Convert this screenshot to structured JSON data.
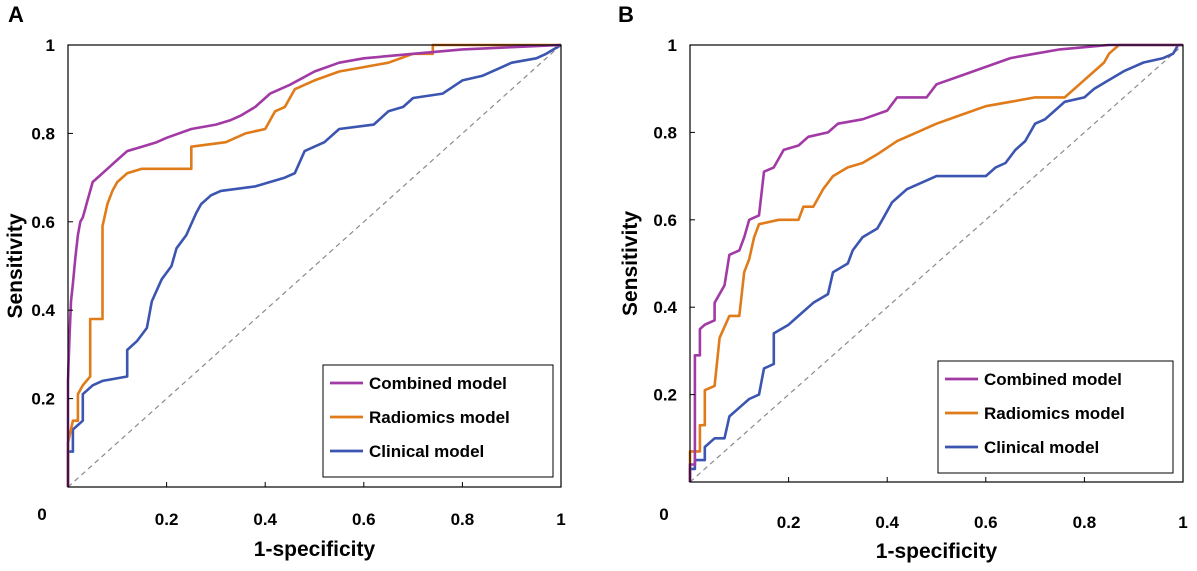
{
  "chart_data": [
    {
      "type": "line",
      "panel": "A",
      "xlabel": "1-specificity",
      "ylabel": "Sensitivity",
      "xlim": [
        0,
        1
      ],
      "ylim": [
        0,
        1
      ],
      "xticks": [
        "0",
        "0.2",
        "0.4",
        "0.6",
        "0.8",
        "1"
      ],
      "yticks": [
        "0.2",
        "0.4",
        "0.6",
        "0.8",
        "1"
      ],
      "legend_position": "bottom-right",
      "reference_line": "diagonal dashed",
      "series": [
        {
          "name": "Combined model",
          "color": "#a23aa6",
          "points": [
            [
              0,
              0
            ],
            [
              0,
              0.24
            ],
            [
              0.003,
              0.34
            ],
            [
              0.006,
              0.42
            ],
            [
              0.01,
              0.46
            ],
            [
              0.015,
              0.52
            ],
            [
              0.02,
              0.57
            ],
            [
              0.025,
              0.6
            ],
            [
              0.03,
              0.61
            ],
            [
              0.035,
              0.63
            ],
            [
              0.04,
              0.65
            ],
            [
              0.045,
              0.67
            ],
            [
              0.05,
              0.69
            ],
            [
              0.06,
              0.7
            ],
            [
              0.08,
              0.72
            ],
            [
              0.1,
              0.74
            ],
            [
              0.12,
              0.76
            ],
            [
              0.15,
              0.77
            ],
            [
              0.18,
              0.78
            ],
            [
              0.2,
              0.79
            ],
            [
              0.25,
              0.81
            ],
            [
              0.3,
              0.82
            ],
            [
              0.33,
              0.83
            ],
            [
              0.35,
              0.84
            ],
            [
              0.38,
              0.86
            ],
            [
              0.41,
              0.89
            ],
            [
              0.45,
              0.91
            ],
            [
              0.5,
              0.94
            ],
            [
              0.55,
              0.96
            ],
            [
              0.6,
              0.97
            ],
            [
              0.7,
              0.98
            ],
            [
              0.8,
              0.99
            ],
            [
              0.9,
              0.995
            ],
            [
              1,
              1
            ]
          ]
        },
        {
          "name": "Radiomics model",
          "color": "#e07b1a",
          "points": [
            [
              0,
              0
            ],
            [
              0,
              0.1
            ],
            [
              0.01,
              0.15
            ],
            [
              0.02,
              0.15
            ],
            [
              0.02,
              0.21
            ],
            [
              0.03,
              0.23
            ],
            [
              0.045,
              0.25
            ],
            [
              0.045,
              0.38
            ],
            [
              0.07,
              0.38
            ],
            [
              0.07,
              0.59
            ],
            [
              0.08,
              0.64
            ],
            [
              0.09,
              0.67
            ],
            [
              0.1,
              0.69
            ],
            [
              0.12,
              0.71
            ],
            [
              0.15,
              0.72
            ],
            [
              0.25,
              0.72
            ],
            [
              0.25,
              0.77
            ],
            [
              0.32,
              0.78
            ],
            [
              0.36,
              0.8
            ],
            [
              0.4,
              0.81
            ],
            [
              0.42,
              0.85
            ],
            [
              0.44,
              0.86
            ],
            [
              0.46,
              0.9
            ],
            [
              0.5,
              0.92
            ],
            [
              0.55,
              0.94
            ],
            [
              0.6,
              0.95
            ],
            [
              0.65,
              0.96
            ],
            [
              0.7,
              0.98
            ],
            [
              0.74,
              0.98
            ],
            [
              0.74,
              1
            ],
            [
              1,
              1
            ]
          ]
        },
        {
          "name": "Clinical model",
          "color": "#3b55b0",
          "points": [
            [
              0,
              0
            ],
            [
              0,
              0.08
            ],
            [
              0.01,
              0.08
            ],
            [
              0.01,
              0.13
            ],
            [
              0.03,
              0.15
            ],
            [
              0.03,
              0.21
            ],
            [
              0.05,
              0.23
            ],
            [
              0.07,
              0.24
            ],
            [
              0.12,
              0.25
            ],
            [
              0.12,
              0.31
            ],
            [
              0.14,
              0.33
            ],
            [
              0.16,
              0.36
            ],
            [
              0.17,
              0.42
            ],
            [
              0.19,
              0.47
            ],
            [
              0.21,
              0.5
            ],
            [
              0.22,
              0.54
            ],
            [
              0.24,
              0.57
            ],
            [
              0.26,
              0.62
            ],
            [
              0.27,
              0.64
            ],
            [
              0.29,
              0.66
            ],
            [
              0.31,
              0.67
            ],
            [
              0.38,
              0.68
            ],
            [
              0.44,
              0.7
            ],
            [
              0.46,
              0.71
            ],
            [
              0.48,
              0.76
            ],
            [
              0.52,
              0.78
            ],
            [
              0.55,
              0.81
            ],
            [
              0.62,
              0.82
            ],
            [
              0.65,
              0.85
            ],
            [
              0.68,
              0.86
            ],
            [
              0.7,
              0.88
            ],
            [
              0.76,
              0.89
            ],
            [
              0.8,
              0.92
            ],
            [
              0.84,
              0.93
            ],
            [
              0.9,
              0.96
            ],
            [
              0.95,
              0.97
            ],
            [
              0.97,
              0.98
            ],
            [
              1,
              1
            ]
          ]
        }
      ]
    },
    {
      "type": "line",
      "panel": "B",
      "xlabel": "1-specificity",
      "ylabel": "Sensitivity",
      "xlim": [
        0,
        1
      ],
      "ylim": [
        0,
        1
      ],
      "xticks": [
        "0",
        "0.2",
        "0.4",
        "0.6",
        "0.8",
        "1"
      ],
      "yticks": [
        "0.2",
        "0.4",
        "0.6",
        "0.8",
        "1"
      ],
      "legend_position": "bottom-right",
      "reference_line": "diagonal dashed",
      "series": [
        {
          "name": "Combined model",
          "color": "#a23aa6",
          "points": [
            [
              0,
              0
            ],
            [
              0,
              0.04
            ],
            [
              0.01,
              0.04
            ],
            [
              0.01,
              0.29
            ],
            [
              0.02,
              0.29
            ],
            [
              0.02,
              0.35
            ],
            [
              0.03,
              0.36
            ],
            [
              0.05,
              0.37
            ],
            [
              0.05,
              0.41
            ],
            [
              0.07,
              0.45
            ],
            [
              0.08,
              0.52
            ],
            [
              0.1,
              0.53
            ],
            [
              0.11,
              0.56
            ],
            [
              0.12,
              0.6
            ],
            [
              0.14,
              0.61
            ],
            [
              0.15,
              0.71
            ],
            [
              0.17,
              0.72
            ],
            [
              0.19,
              0.76
            ],
            [
              0.22,
              0.77
            ],
            [
              0.24,
              0.79
            ],
            [
              0.28,
              0.8
            ],
            [
              0.3,
              0.82
            ],
            [
              0.35,
              0.83
            ],
            [
              0.4,
              0.85
            ],
            [
              0.42,
              0.88
            ],
            [
              0.48,
              0.88
            ],
            [
              0.5,
              0.91
            ],
            [
              0.55,
              0.93
            ],
            [
              0.6,
              0.95
            ],
            [
              0.65,
              0.97
            ],
            [
              0.7,
              0.98
            ],
            [
              0.75,
              0.99
            ],
            [
              0.8,
              0.995
            ],
            [
              0.85,
              1
            ],
            [
              1,
              1
            ]
          ]
        },
        {
          "name": "Radiomics model",
          "color": "#e07b1a",
          "points": [
            [
              0,
              0
            ],
            [
              0,
              0.07
            ],
            [
              0.02,
              0.07
            ],
            [
              0.02,
              0.13
            ],
            [
              0.03,
              0.13
            ],
            [
              0.03,
              0.21
            ],
            [
              0.05,
              0.22
            ],
            [
              0.06,
              0.33
            ],
            [
              0.08,
              0.38
            ],
            [
              0.1,
              0.38
            ],
            [
              0.11,
              0.48
            ],
            [
              0.12,
              0.51
            ],
            [
              0.13,
              0.56
            ],
            [
              0.14,
              0.59
            ],
            [
              0.18,
              0.6
            ],
            [
              0.22,
              0.6
            ],
            [
              0.23,
              0.63
            ],
            [
              0.25,
              0.63
            ],
            [
              0.27,
              0.67
            ],
            [
              0.29,
              0.7
            ],
            [
              0.32,
              0.72
            ],
            [
              0.35,
              0.73
            ],
            [
              0.38,
              0.75
            ],
            [
              0.42,
              0.78
            ],
            [
              0.46,
              0.8
            ],
            [
              0.5,
              0.82
            ],
            [
              0.55,
              0.84
            ],
            [
              0.6,
              0.86
            ],
            [
              0.65,
              0.87
            ],
            [
              0.7,
              0.88
            ],
            [
              0.76,
              0.88
            ],
            [
              0.79,
              0.91
            ],
            [
              0.81,
              0.93
            ],
            [
              0.84,
              0.96
            ],
            [
              0.85,
              0.98
            ],
            [
              0.87,
              1
            ],
            [
              1,
              1
            ]
          ]
        },
        {
          "name": "Clinical model",
          "color": "#3b55b0",
          "points": [
            [
              0,
              0
            ],
            [
              0,
              0.03
            ],
            [
              0.01,
              0.03
            ],
            [
              0.01,
              0.05
            ],
            [
              0.03,
              0.05
            ],
            [
              0.03,
              0.08
            ],
            [
              0.05,
              0.1
            ],
            [
              0.07,
              0.1
            ],
            [
              0.08,
              0.15
            ],
            [
              0.1,
              0.17
            ],
            [
              0.12,
              0.19
            ],
            [
              0.14,
              0.2
            ],
            [
              0.15,
              0.26
            ],
            [
              0.17,
              0.27
            ],
            [
              0.17,
              0.34
            ],
            [
              0.2,
              0.36
            ],
            [
              0.22,
              0.38
            ],
            [
              0.25,
              0.41
            ],
            [
              0.28,
              0.43
            ],
            [
              0.29,
              0.48
            ],
            [
              0.32,
              0.5
            ],
            [
              0.33,
              0.53
            ],
            [
              0.35,
              0.56
            ],
            [
              0.38,
              0.58
            ],
            [
              0.39,
              0.6
            ],
            [
              0.41,
              0.64
            ],
            [
              0.42,
              0.65
            ],
            [
              0.44,
              0.67
            ],
            [
              0.5,
              0.7
            ],
            [
              0.6,
              0.7
            ],
            [
              0.62,
              0.72
            ],
            [
              0.64,
              0.73
            ],
            [
              0.66,
              0.76
            ],
            [
              0.68,
              0.78
            ],
            [
              0.7,
              0.82
            ],
            [
              0.72,
              0.83
            ],
            [
              0.74,
              0.85
            ],
            [
              0.76,
              0.87
            ],
            [
              0.8,
              0.88
            ],
            [
              0.82,
              0.9
            ],
            [
              0.85,
              0.92
            ],
            [
              0.88,
              0.94
            ],
            [
              0.92,
              0.96
            ],
            [
              0.96,
              0.97
            ],
            [
              0.98,
              0.98
            ],
            [
              0.99,
              1
            ],
            [
              1,
              1
            ]
          ]
        }
      ]
    }
  ]
}
